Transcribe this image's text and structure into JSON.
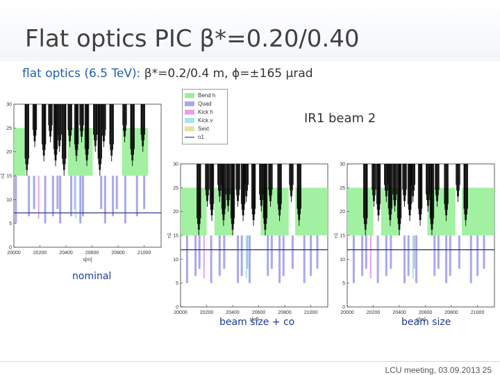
{
  "slide": {
    "title": "Flat optics PIC β*=0.20/0.40",
    "subtitle_accent": "flat optics (6.5 TeV):",
    "subtitle_rest": " β*=0.2/0.4 m, ϕ=±165 µrad",
    "ir_label": "IR1 beam 2",
    "captions": {
      "nominal": "nominal",
      "beam_size_co": "beam size + co",
      "beam_size": "beam size"
    },
    "footer": "LCU meeting, 03.09.2013   25"
  },
  "legend": {
    "items": [
      {
        "label": "Bend h",
        "color": "#98f098"
      },
      {
        "label": "Quad",
        "color": "#a8a8ee"
      },
      {
        "label": "Kick h",
        "color": "#e6a2e6"
      },
      {
        "label": "Kick v",
        "color": "#a6e6e6"
      },
      {
        "label": "Sext",
        "color": "#e6e0a6"
      },
      {
        "label": "n1",
        "color": "#20268a",
        "line": true
      }
    ]
  },
  "colors": {
    "bend": "#98f098",
    "quad": "#a8a8ee",
    "kick_h": "#e6a2e6",
    "kick_v": "#a6e6e6",
    "sext": "#e6e0a6",
    "n1": "#20268a",
    "aperture": "#000000"
  },
  "chart_data": [
    {
      "type": "bar",
      "name": "nominal",
      "xlabel": "s[m]",
      "ylabel": "n1",
      "xlim": [
        20000,
        21130
      ],
      "ylim": [
        0,
        30
      ],
      "xticks": [
        20000,
        20200,
        20400,
        20600,
        20800,
        21000
      ],
      "yticks": [
        0,
        5,
        10,
        15,
        20,
        25,
        30
      ],
      "n1_level": 7.2,
      "bend_regions": [
        [
          20000,
          20090
        ],
        [
          20415,
          20605
        ],
        [
          20830,
          21030
        ]
      ],
      "quad_positions": [
        20015,
        20115,
        20155,
        20240,
        20300,
        20335,
        20355,
        20440,
        20470,
        20510,
        20530,
        20670,
        20700,
        20760,
        20790,
        20855,
        20945,
        21000
      ],
      "aperture_spikes": [
        20100,
        20160,
        20230,
        20280,
        20320,
        20350,
        20385,
        20430,
        20480,
        20520,
        20560,
        20625,
        20660,
        20690,
        20750,
        20850,
        20910,
        20990
      ]
    },
    {
      "type": "bar",
      "name": "beam size + co",
      "xlabel": "s[m]",
      "ylabel": "n1",
      "xlim": [
        20000,
        21130
      ],
      "ylim": [
        0,
        30
      ],
      "xticks": [
        20000,
        20200,
        20400,
        20600,
        20800,
        21000
      ],
      "yticks": [
        0,
        5,
        10,
        15,
        20,
        25,
        30
      ],
      "n1_level": 12,
      "bend_regions": [
        [
          20000,
          20200
        ],
        [
          20260,
          20405
        ],
        [
          20615,
          20830
        ],
        [
          20880,
          21130
        ]
      ],
      "quad_positions": [
        20050,
        20115,
        20145,
        20235,
        20300,
        20335,
        20440,
        20470,
        20510,
        20530,
        20670,
        20700,
        20760,
        20790,
        20860,
        20950,
        21000,
        21050
      ],
      "aperture_spikes": [
        20140,
        20205,
        20240,
        20300,
        20330,
        20365,
        20400,
        20440,
        20480,
        20505,
        20560,
        20620,
        20650,
        20690,
        20760,
        20850,
        20910
      ]
    },
    {
      "type": "bar",
      "name": "beam size",
      "xlabel": "s[m]",
      "ylabel": "n1",
      "xlim": [
        20000,
        21130
      ],
      "ylim": [
        0,
        30
      ],
      "xticks": [
        20000,
        20200,
        20400,
        20600,
        20800,
        21000
      ],
      "yticks": [
        0,
        5,
        10,
        15,
        20,
        25,
        30
      ],
      "n1_level": 12,
      "bend_regions": [
        [
          20000,
          20200
        ],
        [
          20260,
          20405
        ],
        [
          20615,
          20830
        ],
        [
          20880,
          21130
        ]
      ],
      "quad_positions": [
        20050,
        20115,
        20145,
        20235,
        20300,
        20335,
        20440,
        20470,
        20510,
        20530,
        20670,
        20700,
        20760,
        20790,
        20860,
        20950,
        21000,
        21050
      ],
      "aperture_spikes": [
        20140,
        20205,
        20240,
        20300,
        20330,
        20365,
        20400,
        20440,
        20480,
        20505,
        20560,
        20620,
        20650,
        20690,
        20760,
        20850,
        20910
      ]
    }
  ]
}
